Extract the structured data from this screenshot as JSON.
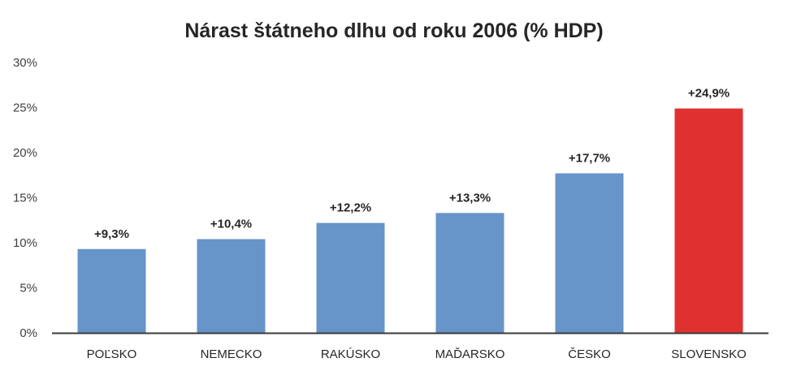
{
  "chart_data": {
    "type": "bar",
    "title": "Nárast štátneho dlhu od roku 2006 (% HDP)",
    "xlabel": "",
    "ylabel": "",
    "categories": [
      "POĽSKO",
      "NEMECKO",
      "RAKÚSKO",
      "MAĎARSKO",
      "ČESKO",
      "SLOVENSKO"
    ],
    "values": [
      9.3,
      10.4,
      12.2,
      13.3,
      17.7,
      24.9
    ],
    "data_labels": [
      "+9,3%",
      "+10,4%",
      "+12,2%",
      "+13,3%",
      "+17,7%",
      "+24,9%"
    ],
    "bar_colors": [
      "#6794c9",
      "#6794c9",
      "#6794c9",
      "#6794c9",
      "#6794c9",
      "#e03131"
    ],
    "ylim": [
      0,
      30
    ],
    "yticks": [
      0,
      5,
      10,
      15,
      20,
      25,
      30
    ],
    "ytick_labels": [
      "0%",
      "5%",
      "10%",
      "15%",
      "20%",
      "25%",
      "30%"
    ],
    "grid": false,
    "legend": "none"
  }
}
